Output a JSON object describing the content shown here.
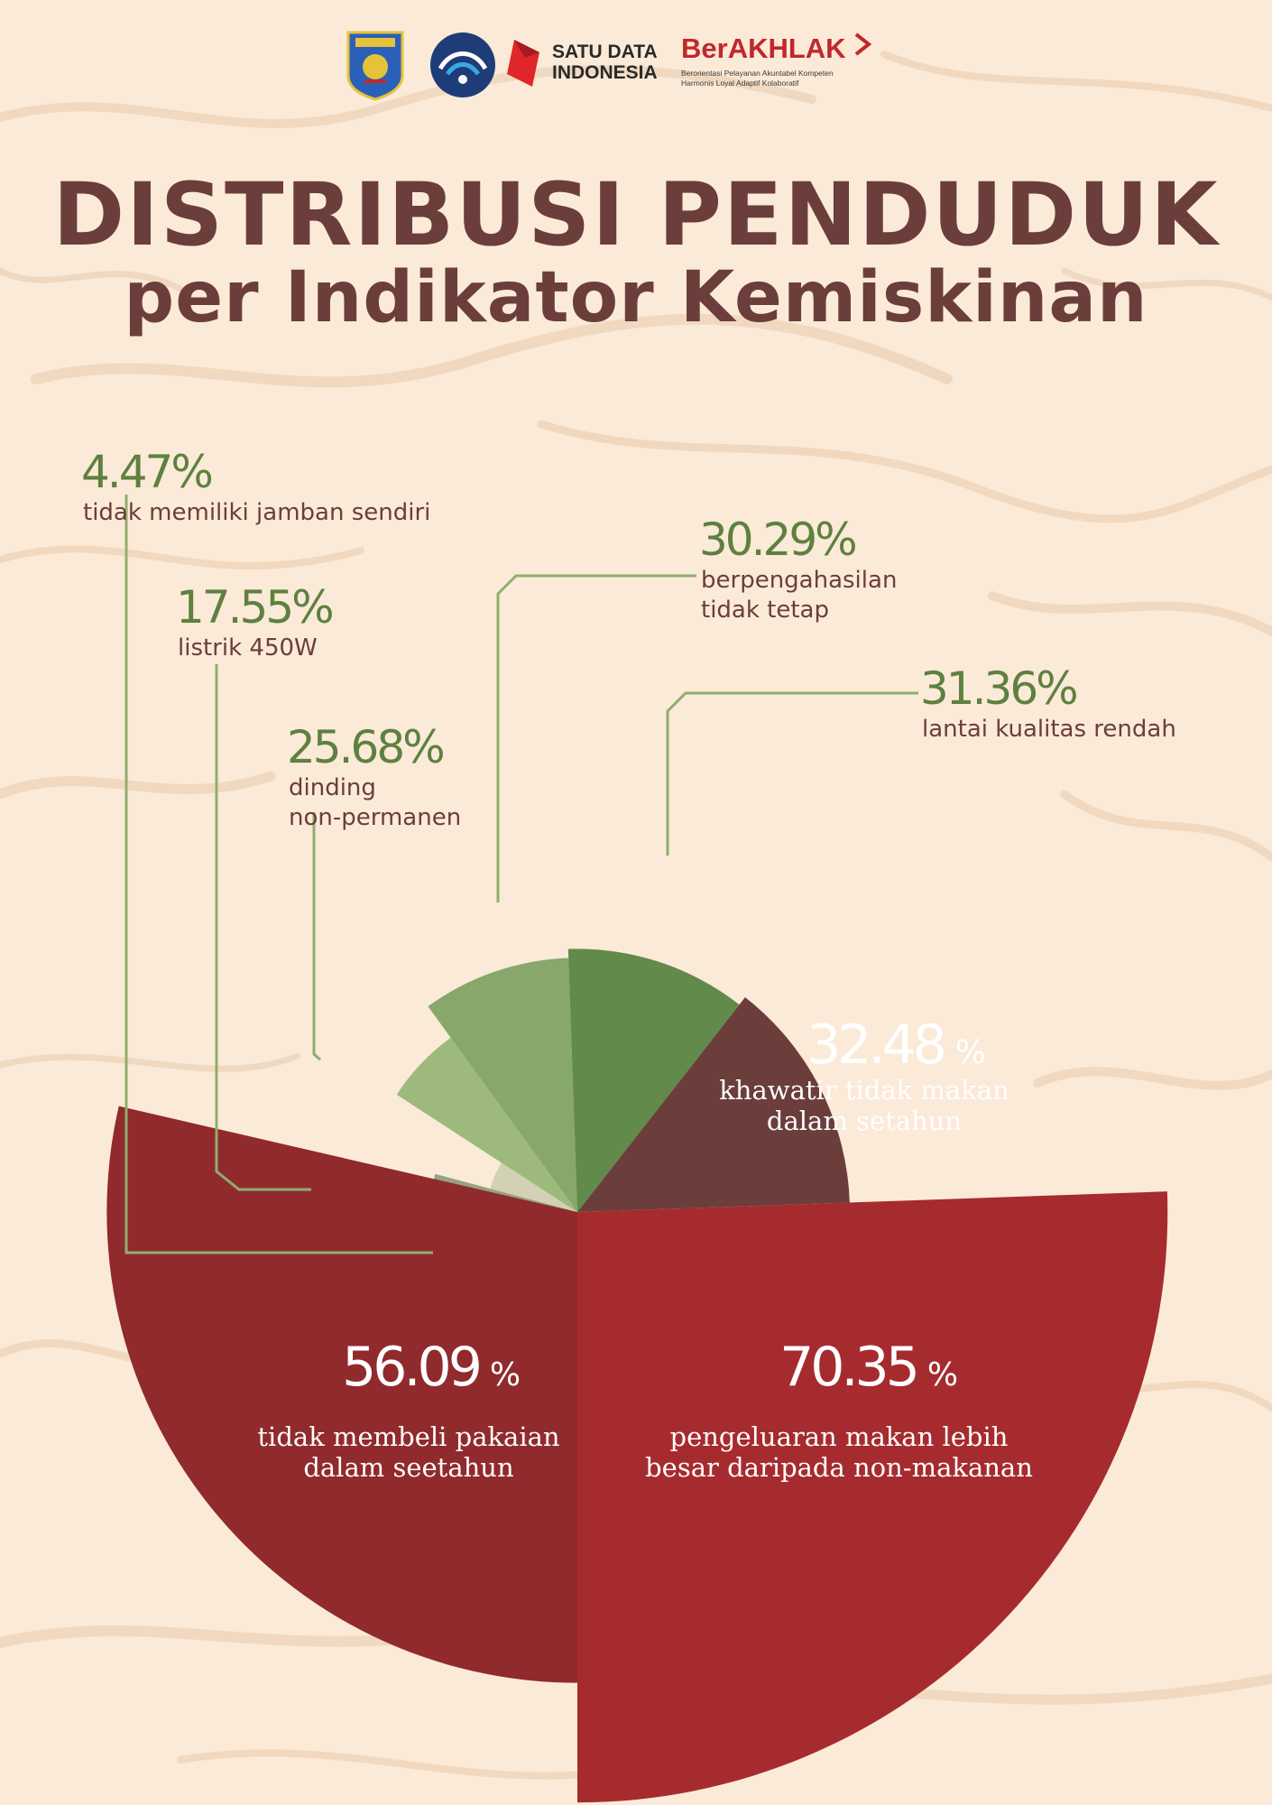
{
  "logos": {
    "emblem": "kota-bontang-emblem",
    "kominfo": "kominfo-logo",
    "sdi_text_line1": "SATU DATA",
    "sdi_text_line2": "INDONESIA",
    "ber_title": "BerAKHLAK",
    "ber_sub_line1": "Berorientasi Pelayanan Akuntabel Kompeten",
    "ber_sub_line2": "Harmonis Loyal Adaptif Kolaboratif"
  },
  "title": "DISTRIBUSI PENDUDUK",
  "subtitle": "per Indikator Kemiskinan",
  "colors": {
    "background": "#fbead7",
    "title": "#6b3e3c",
    "green_text": "#5e8040",
    "line": "#8fae6e"
  },
  "chart_data": {
    "type": "pie",
    "variant": "nightingale rose (radius proportional to value)",
    "slices": [
      {
        "value": 4.47,
        "percent_label": "4.47%",
        "label": [
          "tidak memiliki jamban sendiri"
        ],
        "color": "#d3d1b5"
      },
      {
        "value": 17.55,
        "percent_label": "17.55%",
        "label": [
          "listrik 450W"
        ],
        "color": "#96a280"
      },
      {
        "value": 25.68,
        "percent_label": "25.68%",
        "label": [
          "dinding",
          "non-permanen"
        ],
        "color": "#9dba7c"
      },
      {
        "value": 30.29,
        "percent_label": "30.29%",
        "label": [
          "berpengahasilan",
          "tidak tetap"
        ],
        "color": "#87a86a"
      },
      {
        "value": 31.36,
        "percent_label": "31.36%",
        "label": [
          "lantai kualitas rendah"
        ],
        "color": "#628a4a"
      },
      {
        "value": 32.48,
        "percent_label": "32.48",
        "label": [
          "khawatir tidak makan",
          "dalam setahun"
        ],
        "color": "#6b3e3c"
      },
      {
        "value": 70.35,
        "percent_label": "70.35",
        "label": [
          "pengeluaran makan lebih",
          "besar daripada non-makanan"
        ],
        "color": "#a62b2f"
      },
      {
        "value": 56.09,
        "percent_label": "56.09",
        "label": [
          "tidak membeli pakaian",
          "dalam seetahun"
        ],
        "color": "#912a2d"
      }
    ],
    "percent_sign": "%"
  }
}
